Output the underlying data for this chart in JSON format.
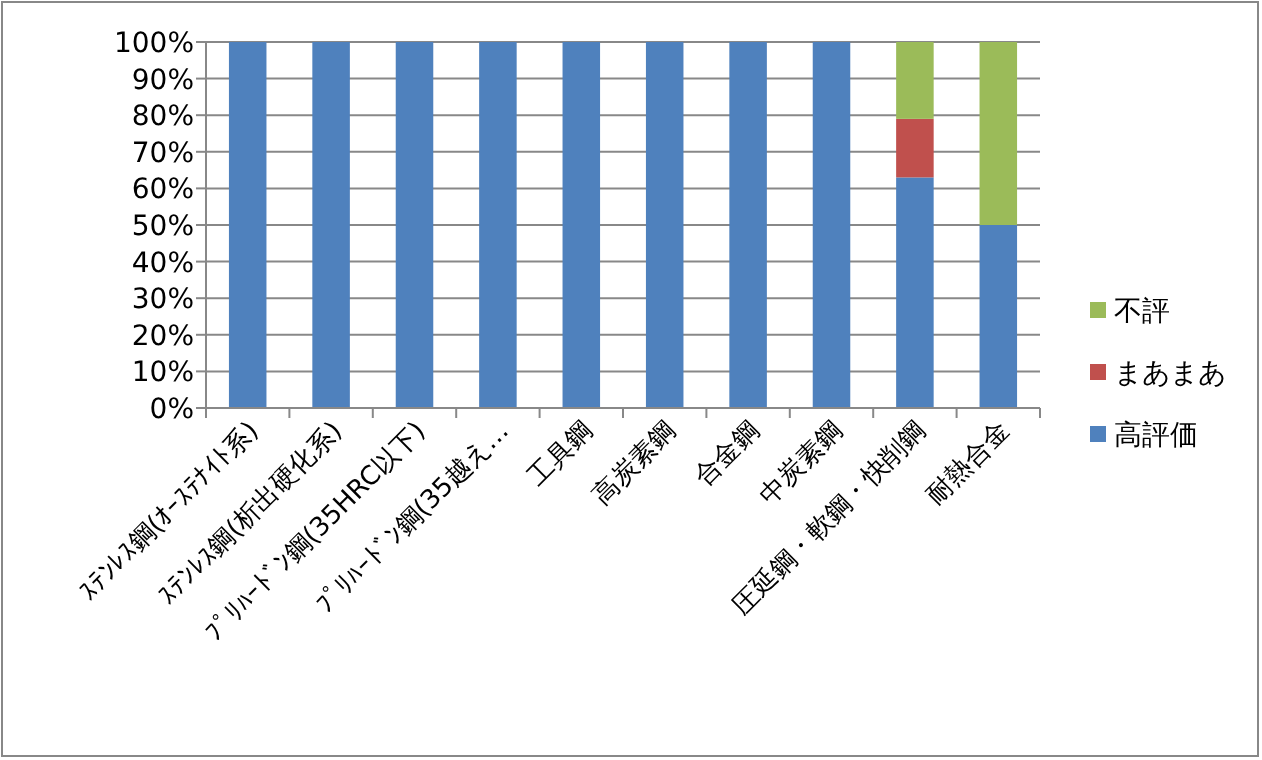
{
  "chart_data": {
    "type": "bar",
    "stacked": true,
    "categories": [
      "ｽﾃﾝﾚｽ鋼(ｵｰｽﾃﾅｲﾄ系)",
      "ｽﾃﾝﾚｽ鋼(析出硬化系)",
      "ﾌﾟﾘﾊｰﾄﾞﾝ鋼(35HRC以下)",
      "ﾌﾟﾘﾊｰﾄﾞﾝ鋼(35越え…",
      "工具鋼",
      "高炭素鋼",
      "合金鋼",
      "中炭素鋼",
      "圧延鋼・軟鋼・快削鋼",
      "耐熱合金"
    ],
    "series": [
      {
        "name": "高評価",
        "color": "#4f81bd",
        "values": [
          100,
          100,
          100,
          100,
          100,
          100,
          100,
          100,
          63,
          50
        ]
      },
      {
        "name": "まあまあ",
        "color": "#c0504d",
        "values": [
          0,
          0,
          0,
          0,
          0,
          0,
          0,
          0,
          16,
          0
        ]
      },
      {
        "name": "不評",
        "color": "#9bbb59",
        "values": [
          0,
          0,
          0,
          0,
          0,
          0,
          0,
          0,
          21,
          50
        ]
      }
    ],
    "ylim": [
      0,
      100
    ],
    "yticks": [
      {
        "value": 0,
        "label": "0%"
      },
      {
        "value": 10,
        "label": "10%"
      },
      {
        "value": 20,
        "label": "20%"
      },
      {
        "value": 30,
        "label": "30%"
      },
      {
        "value": 40,
        "label": "40%"
      },
      {
        "value": 50,
        "label": "50%"
      },
      {
        "value": 60,
        "label": "60%"
      },
      {
        "value": 70,
        "label": "70%"
      },
      {
        "value": 80,
        "label": "80%"
      },
      {
        "value": 90,
        "label": "90%"
      },
      {
        "value": 100,
        "label": "100%"
      }
    ],
    "grid": "y",
    "legend": "right"
  }
}
